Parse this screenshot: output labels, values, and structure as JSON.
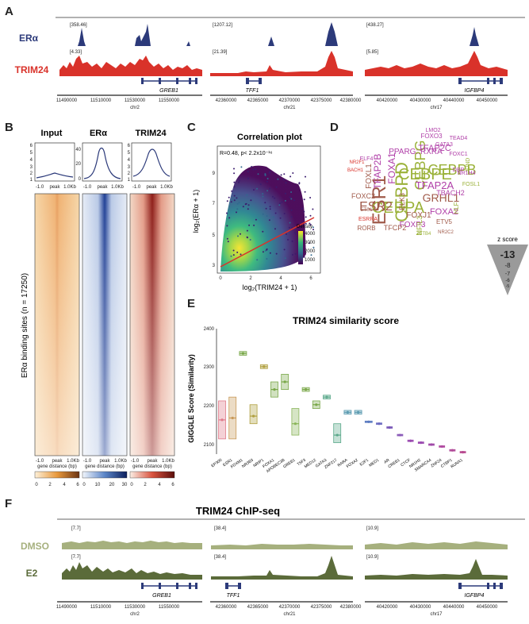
{
  "panels": {
    "a": "A",
    "b": "B",
    "c": "C",
    "d": "D",
    "e": "E",
    "f": "F"
  },
  "panelA": {
    "tracks": [
      {
        "label": "ERα",
        "color": "#2c3a7a",
        "scales": [
          "[358.46]",
          "[1207.12]",
          "[438.27]"
        ]
      },
      {
        "label": "TRIM24",
        "color": "#d9322a",
        "scales": [
          "[4.33]",
          "[21.39]",
          "[5.85]"
        ]
      }
    ],
    "loci": [
      {
        "gene": "GREB1",
        "chr": "chr2",
        "ticks": [
          "11490000",
          "11510000",
          "11530000",
          "11550000"
        ]
      },
      {
        "gene": "TFF1",
        "chr": "chr21",
        "ticks": [
          "42360000",
          "42365000",
          "42370000",
          "42375000",
          "42380000"
        ]
      },
      {
        "gene": "IGFBP4",
        "chr": "chr17",
        "ticks": [
          "40420000",
          "40430000",
          "40440000",
          "40450000"
        ]
      }
    ]
  },
  "panelB": {
    "columns": [
      {
        "title": "Input",
        "color": "#e07f2a",
        "yticks": [
          "6",
          "5",
          "4",
          "3",
          "2",
          "1"
        ],
        "cbar": [
          "0",
          "2",
          "4",
          "6"
        ]
      },
      {
        "title": "ERα",
        "color": "#2f5bb0",
        "yticks": [
          "40",
          "20",
          "0"
        ],
        "cbar": [
          "0",
          "10",
          "20",
          "30"
        ]
      },
      {
        "title": "TRIM24",
        "color": "#b8302a",
        "yticks": [
          "6",
          "5",
          "4",
          "3",
          "2",
          "1"
        ],
        "cbar": [
          "0",
          "2",
          "4",
          "6"
        ]
      }
    ],
    "xticks": [
      "-1.0",
      "peak",
      "1.0Kb"
    ],
    "xlabel": "gene distance (bp)",
    "ylabel": "ERα binding sites (n = 17250)"
  },
  "panelC": {
    "title": "Correlation plot",
    "annotation": "R=0.48, p< 2.2x10⁻¹⁶",
    "xlabel": "log₂(TRIM24 + 1)",
    "ylabel": "log₂(ERα + 1)",
    "xticks": [
      "0",
      "2",
      "4",
      "6"
    ],
    "yticks": [
      "3",
      "5",
      "7",
      "9"
    ],
    "legend_title": "Density",
    "legend_ticks": [
      "4000",
      "3000",
      "2000",
      "1000"
    ]
  },
  "panelD": {
    "words": [
      {
        "t": "ESR1",
        "c": "#a05a4a"
      },
      {
        "t": "CEBPD",
        "c": "#9bb23a"
      },
      {
        "t": "CEBPE",
        "c": "#9bb23a"
      },
      {
        "t": "CEBPB",
        "c": "#9bb23a"
      },
      {
        "t": "CEBPA",
        "c": "#9bb23a"
      },
      {
        "t": "CEBPG",
        "c": "#9bb23a"
      },
      {
        "t": "ESR2",
        "c": "#a05a4a"
      },
      {
        "t": "GRHL1",
        "c": "#a05a4a"
      },
      {
        "t": "TFAP2A",
        "c": "#b03fa8"
      },
      {
        "t": "TFAP2B",
        "c": "#b03fa8"
      },
      {
        "t": "TFAP2C",
        "c": "#b03fa8"
      },
      {
        "t": "FOXA1",
        "c": "#b03fa8"
      },
      {
        "t": "FOXA2",
        "c": "#b03fa8"
      },
      {
        "t": "FOXL1",
        "c": "#a05a4a"
      },
      {
        "t": "FOXJ1",
        "c": "#a05a4a"
      },
      {
        "t": "FOXP3",
        "c": "#b03fa8"
      },
      {
        "t": "FOXC2",
        "c": "#a05a4a"
      },
      {
        "t": "FOXO3",
        "c": "#b03fa8"
      },
      {
        "t": "PPARG::RXRA",
        "c": "#b03fa8"
      },
      {
        "t": "NFIL3",
        "c": "#9bb23a"
      },
      {
        "t": "TBACH2",
        "c": "#b03fa8"
      },
      {
        "t": "TFCP2",
        "c": "#a05a4a"
      },
      {
        "t": "RORB",
        "c": "#a05a4a"
      },
      {
        "t": "ETV5",
        "c": "#a05a4a"
      },
      {
        "t": "ELK3",
        "c": "#a05a4a"
      },
      {
        "t": "HLF",
        "c": "#9bb23a"
      },
      {
        "t": "JUND",
        "c": "#9bb23a"
      },
      {
        "t": "FOSL1",
        "c": "#9bb23a"
      },
      {
        "t": "NR1H4",
        "c": "#b03fa8"
      },
      {
        "t": "DBP",
        "c": "#b03fa8"
      },
      {
        "t": "TEAD4",
        "c": "#b03fa8"
      },
      {
        "t": "GATA3",
        "c": "#b03fa8"
      },
      {
        "t": "ELF4",
        "c": "#b03fa8"
      },
      {
        "t": "NR2F1",
        "c": "#d9322a"
      },
      {
        "t": "BACH1",
        "c": "#d9322a"
      },
      {
        "t": "ESRRA",
        "c": "#d9322a"
      },
      {
        "t": "ETS1",
        "c": "#a05a4a"
      },
      {
        "t": "ZBTB4",
        "c": "#9bb23a"
      },
      {
        "t": "NR2C2",
        "c": "#a05a4a"
      },
      {
        "t": "FOXC1",
        "c": "#b03fa8"
      },
      {
        "t": "LMO2",
        "c": "#b03fa8"
      }
    ],
    "legend_title": "z score",
    "legend_values": [
      "-13",
      "-8",
      "-7",
      "-6",
      "-5"
    ]
  },
  "panelE": {
    "title": "TRIM24 similarity score",
    "ylabel": "GIGGLE Score (Similarity)",
    "yticks": [
      "2400",
      "2300",
      "2200",
      "2100"
    ],
    "categories": [
      "EP300",
      "ESR1",
      "FOXM1",
      "NR3B3",
      "NRIP1",
      "FOXA1",
      "APOBEC3B",
      "GREB1",
      "T5F3",
      "MED12",
      "GATA3",
      "ZNF217",
      "RARA",
      "FOXA2",
      "E2F1",
      "MED1",
      "AR",
      "CREB1",
      "CTCF",
      "NR1H2",
      "SMARCA4",
      "ZNF24",
      "CTBP1",
      "RUNX1"
    ],
    "chart_data": {
      "type": "box",
      "title": "TRIM24 similarity score",
      "ylabel": "GIGGLE Score (Similarity)",
      "ylim": [
        2080,
        2410
      ],
      "categories": [
        "EP300",
        "ESR1",
        "FOXM1",
        "NR3B3",
        "NRIP1",
        "FOXA1",
        "APOBEC3B",
        "GREB1",
        "T5F3",
        "MED12",
        "GATA3",
        "ZNF217",
        "RARA",
        "FOXA2",
        "E2F1",
        "MED1",
        "AR",
        "CREB1",
        "CTCF",
        "NR1H2",
        "SMARCA4",
        "ZNF24",
        "CTBP1",
        "RUNX1"
      ],
      "medians": [
        2170,
        2175,
        2345,
        2180,
        2310,
        2250,
        2270,
        2160,
        2250,
        2210,
        2230,
        2130,
        2190,
        2190,
        2165,
        2160,
        2150,
        2130,
        2115,
        2110,
        2105,
        2100,
        2090,
        2085
      ],
      "q1": [
        2120,
        2120,
        2340,
        2160,
        2305,
        2230,
        2250,
        2130,
        2245,
        2200,
        2225,
        2110,
        2185,
        2185,
        2163,
        2158,
        2148,
        2128,
        2113,
        2108,
        2103,
        2098,
        2088,
        2083
      ],
      "q3": [
        2220,
        2230,
        2350,
        2210,
        2315,
        2270,
        2290,
        2200,
        2255,
        2220,
        2235,
        2160,
        2195,
        2195,
        2167,
        2162,
        2152,
        2132,
        2117,
        2112,
        2107,
        2102,
        2092,
        2087
      ],
      "colors": [
        "#e07a8a",
        "#c99a5a",
        "#7aa84a",
        "#b0a040",
        "#b0a040",
        "#7aa84a",
        "#7aa84a",
        "#8ab55a",
        "#7aa84a",
        "#7aa84a",
        "#5aa88a",
        "#5aa88a",
        "#5a9ab0",
        "#5a9ab0",
        "#5a7ac0",
        "#6a6ac0",
        "#7a5ab8",
        "#8a5ab8",
        "#9a4ab0",
        "#9a4ab0",
        "#a04aa8",
        "#b04aa0",
        "#b04a98",
        "#b84a90"
      ]
    }
  },
  "panelF": {
    "title": "TRIM24 ChIP-seq",
    "tracks": [
      {
        "label": "DMSO",
        "color": "#a6b07e",
        "scales": [
          "[7.7]",
          "[38.4]",
          "[10.9]"
        ]
      },
      {
        "label": "E2",
        "color": "#5b6b3a",
        "scales": [
          "[7.7]",
          "[38.4]",
          "[10.9]"
        ]
      }
    ],
    "loci": [
      {
        "gene": "GREB1",
        "chr": "chr2",
        "ticks": [
          "11490000",
          "11510000",
          "11530000",
          "11550000"
        ]
      },
      {
        "gene": "TFF1",
        "chr": "chr21",
        "ticks": [
          "42360000",
          "42365000",
          "42370000",
          "42375000",
          "42380000"
        ]
      },
      {
        "gene": "IGFBP4",
        "chr": "chr17",
        "ticks": [
          "40420000",
          "40430000",
          "40440000",
          "40450000"
        ]
      }
    ]
  }
}
